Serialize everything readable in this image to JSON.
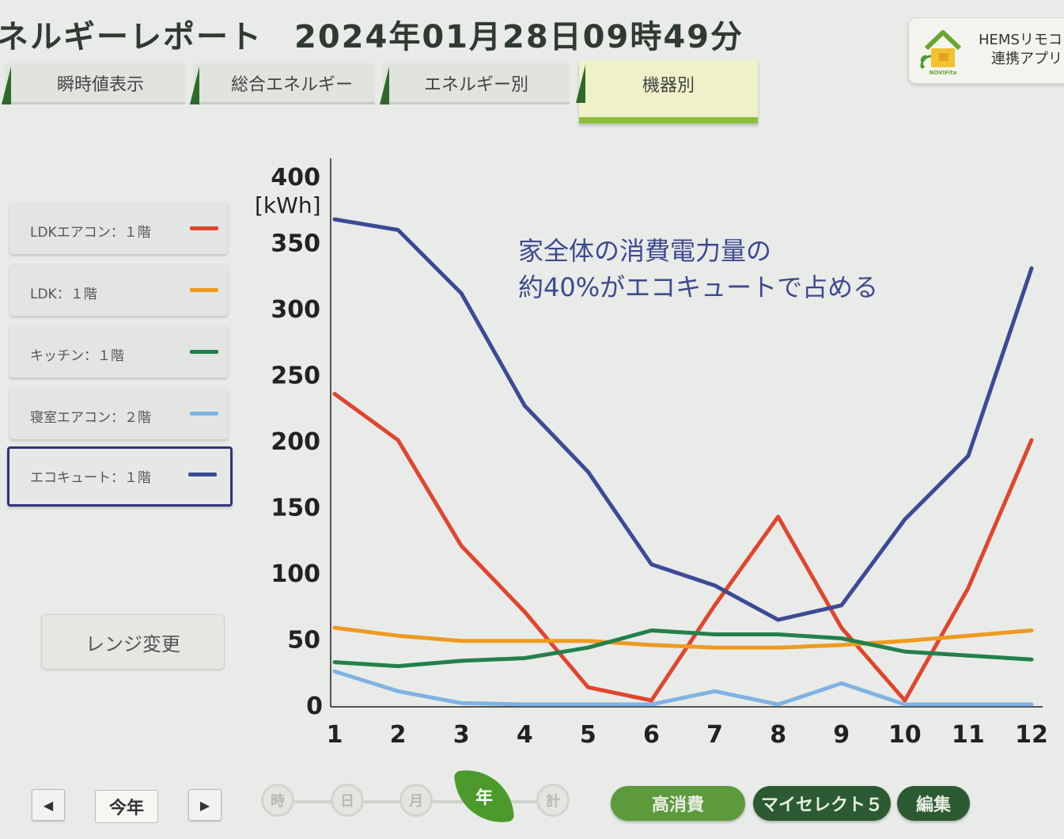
{
  "header": {
    "title": "ネルギーレポート",
    "datetime": "2024年01月28日09時49分"
  },
  "app_card": {
    "logo_text": "NOVIFita",
    "line1": "HEMSリモコ",
    "line2": "連携アプリ",
    "logo_icon": "house-wifi-icon"
  },
  "tabs": [
    {
      "label": "瞬時値表示",
      "active": false
    },
    {
      "label": "総合エネルギー",
      "active": false
    },
    {
      "label": "エネルギー別",
      "active": false
    },
    {
      "label": "機器別",
      "active": true
    }
  ],
  "legend": [
    {
      "label": "LDKエアコン：１階",
      "color": "#e0452e",
      "selected": false
    },
    {
      "label": "LDK：１階",
      "color": "#ef9a1f",
      "selected": false
    },
    {
      "label": "キッチン：１階",
      "color": "#23804a",
      "selected": false
    },
    {
      "label": "寝室エアコン：２階",
      "color": "#7eb3e3",
      "selected": false
    },
    {
      "label": "エコキュート：１階",
      "color": "#3d4a96",
      "selected": true
    }
  ],
  "range_button": "レンジ変更",
  "annotation": {
    "line1": "家全体の消費電力量の",
    "line2": "約40%がエコキュートで占める"
  },
  "bottom": {
    "prev_icon": "◀",
    "next_icon": "▶",
    "period": "今年",
    "scale": [
      "時",
      "日",
      "月",
      "年",
      "計"
    ],
    "scale_active": "年",
    "buttons": [
      "高消費",
      "マイセレクト５",
      "編集"
    ]
  },
  "chart_data": {
    "type": "line",
    "x": [
      1,
      2,
      3,
      4,
      5,
      6,
      7,
      8,
      9,
      10,
      11,
      12
    ],
    "ylabel": "[kWh]",
    "ylim": [
      0,
      400
    ],
    "yticks": [
      0,
      50,
      100,
      150,
      200,
      250,
      300,
      350,
      400
    ],
    "grid": false,
    "series": [
      {
        "name": "LDKエアコン：１階",
        "color": "#e0452e",
        "values": [
          235,
          200,
          120,
          70,
          13,
          3,
          75,
          142,
          58,
          3,
          88,
          200
        ]
      },
      {
        "name": "LDK：１階",
        "color": "#ef9a1f",
        "values": [
          58,
          52,
          48,
          48,
          48,
          45,
          43,
          43,
          45,
          48,
          52,
          56
        ]
      },
      {
        "name": "キッチン：１階",
        "color": "#23804a",
        "values": [
          32,
          29,
          33,
          35,
          43,
          56,
          53,
          53,
          50,
          40,
          37,
          34
        ]
      },
      {
        "name": "寝室エアコン：２階",
        "color": "#7eb3e3",
        "values": [
          25,
          10,
          1,
          0,
          0,
          0,
          10,
          0,
          16,
          0,
          0,
          0
        ]
      },
      {
        "name": "エコキュート：１階",
        "color": "#3d4a96",
        "values": [
          367,
          359,
          311,
          226,
          176,
          106,
          90,
          64,
          75,
          140,
          188,
          330
        ]
      }
    ]
  }
}
